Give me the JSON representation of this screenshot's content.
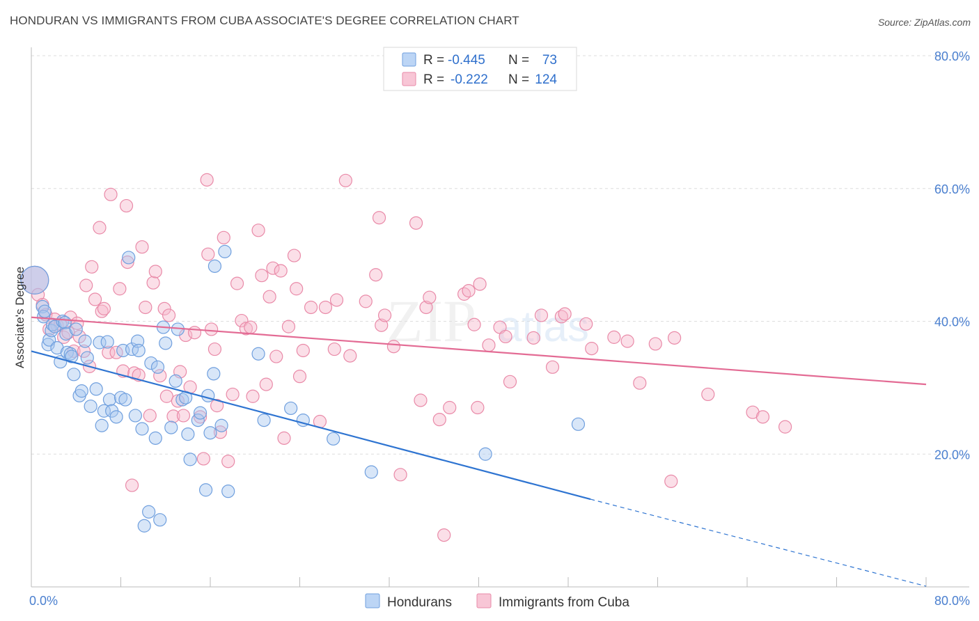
{
  "title": "HONDURAN VS IMMIGRANTS FROM CUBA ASSOCIATE'S DEGREE CORRELATION CHART",
  "source": "Source: ZipAtlas.com",
  "colors": {
    "blue_fill": "#a9c7f0",
    "blue_stroke": "#6f9fde",
    "blue_line": "#2e74d1",
    "pink_fill": "#f6b8cb",
    "pink_stroke": "#e98aa8",
    "pink_line": "#e36b94",
    "tick": "#4a7fcf",
    "grid": "#dddddd"
  },
  "legend": {
    "r_label": "R =",
    "n_label": "N =",
    "rows": [
      {
        "series": "blue",
        "r": "-0.445",
        "n": "73"
      },
      {
        "series": "pink",
        "r": "-0.222",
        "n": "124"
      }
    ]
  },
  "chart_data": {
    "type": "scatter",
    "title": "HONDURAN VS IMMIGRANTS FROM CUBA ASSOCIATE'S DEGREE CORRELATION CHART",
    "xlabel": "",
    "ylabel": "Associate's Degree",
    "xlim": [
      0,
      80
    ],
    "ylim": [
      0,
      80
    ],
    "x_tick_labels": [
      "0.0%",
      "80.0%"
    ],
    "y_ticks": [
      20,
      40,
      60,
      80
    ],
    "y_tick_labels": [
      "20.0%",
      "40.0%",
      "60.0%",
      "80.0%"
    ],
    "x_minor_ticks": [
      8,
      16,
      24,
      32,
      40,
      48,
      56,
      64,
      72,
      80
    ],
    "grid": true,
    "legend_entries": [
      "Hondurans",
      "Immigrants from Cuba"
    ],
    "series": [
      {
        "name": "Hondurans",
        "color": "blue",
        "r": -0.445,
        "n": 73,
        "trend": {
          "x0": 0,
          "y0": 35.5,
          "x1": 50,
          "y1": 13.2,
          "dash_x1": 80,
          "dash_y1": 0.1
        },
        "points": [
          [
            0.3,
            46.2
          ],
          [
            1.0,
            42.2
          ],
          [
            1.1,
            40.7
          ],
          [
            1.2,
            41.5
          ],
          [
            1.5,
            36.5
          ],
          [
            1.6,
            37.2
          ],
          [
            1.8,
            38.6
          ],
          [
            1.9,
            39.5
          ],
          [
            2.1,
            39.2
          ],
          [
            2.3,
            36.0
          ],
          [
            2.6,
            33.9
          ],
          [
            2.8,
            40.0
          ],
          [
            3.0,
            39.8
          ],
          [
            3.1,
            38.1
          ],
          [
            3.2,
            35.3
          ],
          [
            3.5,
            35.1
          ],
          [
            3.6,
            34.7
          ],
          [
            3.8,
            32.0
          ],
          [
            4.0,
            38.8
          ],
          [
            4.3,
            28.8
          ],
          [
            4.5,
            29.5
          ],
          [
            4.8,
            37.0
          ],
          [
            5.0,
            34.5
          ],
          [
            5.3,
            27.2
          ],
          [
            5.8,
            29.8
          ],
          [
            6.1,
            36.8
          ],
          [
            6.3,
            24.3
          ],
          [
            6.5,
            26.5
          ],
          [
            6.8,
            36.9
          ],
          [
            7.0,
            28.2
          ],
          [
            7.2,
            26.5
          ],
          [
            7.6,
            25.6
          ],
          [
            8.0,
            28.5
          ],
          [
            8.2,
            35.6
          ],
          [
            8.4,
            28.2
          ],
          [
            8.7,
            49.6
          ],
          [
            9.0,
            35.8
          ],
          [
            9.3,
            25.8
          ],
          [
            9.5,
            37.0
          ],
          [
            9.6,
            35.6
          ],
          [
            9.9,
            23.8
          ],
          [
            10.1,
            9.2
          ],
          [
            10.5,
            11.3
          ],
          [
            10.7,
            33.7
          ],
          [
            11.1,
            22.4
          ],
          [
            11.3,
            33.1
          ],
          [
            11.5,
            10.1
          ],
          [
            11.8,
            39.1
          ],
          [
            12.0,
            36.7
          ],
          [
            12.5,
            24.0
          ],
          [
            12.9,
            31.0
          ],
          [
            13.1,
            38.8
          ],
          [
            13.5,
            28.2
          ],
          [
            13.8,
            28.5
          ],
          [
            14.0,
            23.0
          ],
          [
            14.2,
            19.2
          ],
          [
            14.9,
            25.1
          ],
          [
            15.1,
            26.2
          ],
          [
            15.6,
            14.6
          ],
          [
            15.8,
            28.8
          ],
          [
            16.0,
            23.2
          ],
          [
            16.3,
            32.1
          ],
          [
            16.4,
            48.3
          ],
          [
            17.0,
            24.3
          ],
          [
            17.3,
            50.5
          ],
          [
            17.6,
            14.4
          ],
          [
            20.3,
            35.1
          ],
          [
            20.8,
            25.1
          ],
          [
            23.2,
            26.9
          ],
          [
            24.3,
            25.1
          ],
          [
            27.0,
            22.3
          ],
          [
            30.4,
            17.3
          ],
          [
            40.6,
            20.0
          ],
          [
            48.9,
            24.5
          ]
        ]
      },
      {
        "name": "Immigrants from Cuba",
        "color": "pink",
        "r": -0.222,
        "n": 124,
        "trend": {
          "x0": 0,
          "y0": 40.6,
          "x1": 80,
          "y1": 30.5
        },
        "points": [
          [
            0.3,
            46.2
          ],
          [
            0.6,
            44.0
          ],
          [
            1.0,
            42.5
          ],
          [
            1.3,
            41.0
          ],
          [
            1.6,
            38.8
          ],
          [
            2.1,
            40.3
          ],
          [
            2.3,
            39.4
          ],
          [
            2.6,
            39.6
          ],
          [
            2.9,
            37.6
          ],
          [
            3.3,
            38.3
          ],
          [
            3.5,
            40.6
          ],
          [
            3.8,
            35.5
          ],
          [
            4.1,
            39.7
          ],
          [
            4.3,
            37.7
          ],
          [
            4.7,
            35.5
          ],
          [
            4.9,
            45.4
          ],
          [
            5.2,
            33.2
          ],
          [
            5.4,
            48.2
          ],
          [
            5.7,
            43.3
          ],
          [
            6.1,
            54.1
          ],
          [
            6.3,
            41.5
          ],
          [
            6.5,
            41.9
          ],
          [
            6.9,
            35.3
          ],
          [
            7.1,
            59.1
          ],
          [
            7.6,
            35.3
          ],
          [
            7.9,
            44.9
          ],
          [
            8.2,
            32.5
          ],
          [
            8.5,
            57.4
          ],
          [
            8.6,
            48.9
          ],
          [
            9.0,
            15.3
          ],
          [
            9.2,
            32.2
          ],
          [
            9.6,
            31.9
          ],
          [
            9.9,
            51.2
          ],
          [
            10.2,
            42.1
          ],
          [
            10.6,
            25.8
          ],
          [
            10.9,
            45.8
          ],
          [
            11.1,
            47.5
          ],
          [
            11.5,
            31.8
          ],
          [
            11.9,
            41.9
          ],
          [
            12.1,
            28.7
          ],
          [
            12.3,
            40.9
          ],
          [
            12.7,
            25.7
          ],
          [
            13.1,
            28.0
          ],
          [
            13.3,
            32.4
          ],
          [
            13.6,
            25.8
          ],
          [
            13.8,
            37.9
          ],
          [
            14.2,
            30.1
          ],
          [
            14.6,
            38.3
          ],
          [
            15.1,
            25.6
          ],
          [
            15.4,
            19.3
          ],
          [
            15.7,
            61.3
          ],
          [
            15.8,
            50.1
          ],
          [
            16.1,
            38.8
          ],
          [
            16.4,
            35.8
          ],
          [
            16.6,
            27.3
          ],
          [
            16.9,
            23.3
          ],
          [
            17.2,
            52.6
          ],
          [
            17.6,
            18.9
          ],
          [
            18.0,
            29.0
          ],
          [
            18.4,
            45.7
          ],
          [
            18.8,
            40.1
          ],
          [
            19.2,
            38.9
          ],
          [
            19.6,
            39.1
          ],
          [
            19.8,
            28.7
          ],
          [
            20.3,
            53.7
          ],
          [
            20.6,
            46.9
          ],
          [
            21.0,
            30.5
          ],
          [
            21.3,
            43.7
          ],
          [
            21.6,
            48.0
          ],
          [
            21.9,
            34.7
          ],
          [
            22.3,
            47.6
          ],
          [
            22.6,
            22.4
          ],
          [
            23.0,
            39.2
          ],
          [
            23.5,
            49.9
          ],
          [
            23.7,
            44.9
          ],
          [
            24.0,
            31.7
          ],
          [
            24.3,
            35.6
          ],
          [
            25.0,
            42.1
          ],
          [
            25.8,
            24.9
          ],
          [
            26.3,
            42.1
          ],
          [
            27.1,
            35.8
          ],
          [
            27.3,
            43.2
          ],
          [
            28.1,
            61.2
          ],
          [
            28.5,
            34.8
          ],
          [
            29.9,
            43.0
          ],
          [
            30.8,
            47.0
          ],
          [
            31.1,
            55.6
          ],
          [
            31.3,
            39.4
          ],
          [
            31.6,
            40.9
          ],
          [
            32.4,
            36.2
          ],
          [
            33.0,
            16.9
          ],
          [
            34.4,
            54.8
          ],
          [
            34.8,
            28.1
          ],
          [
            35.3,
            42.1
          ],
          [
            35.6,
            43.6
          ],
          [
            36.5,
            25.2
          ],
          [
            36.9,
            7.8
          ],
          [
            37.4,
            27.0
          ],
          [
            38.7,
            44.1
          ],
          [
            39.1,
            44.6
          ],
          [
            39.6,
            39.5
          ],
          [
            39.9,
            27.0
          ],
          [
            40.1,
            45.6
          ],
          [
            40.9,
            36.4
          ],
          [
            41.9,
            39.1
          ],
          [
            42.4,
            37.7
          ],
          [
            42.8,
            30.9
          ],
          [
            44.9,
            37.5
          ],
          [
            45.6,
            40.9
          ],
          [
            46.6,
            33.1
          ],
          [
            47.4,
            40.7
          ],
          [
            47.7,
            41.1
          ],
          [
            49.6,
            39.6
          ],
          [
            50.1,
            35.9
          ],
          [
            52.1,
            37.6
          ],
          [
            53.3,
            37.0
          ],
          [
            54.4,
            30.7
          ],
          [
            55.8,
            36.6
          ],
          [
            57.2,
            15.9
          ],
          [
            57.5,
            37.5
          ],
          [
            60.5,
            29.0
          ],
          [
            64.5,
            26.3
          ],
          [
            65.4,
            25.6
          ],
          [
            67.4,
            24.1
          ]
        ]
      }
    ]
  }
}
